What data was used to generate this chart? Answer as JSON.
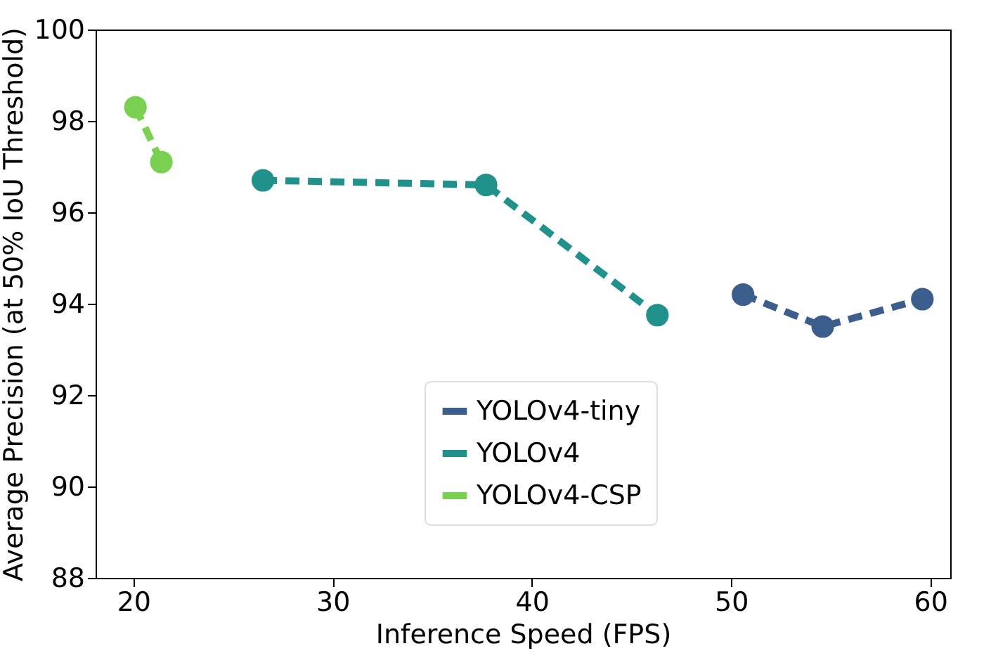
{
  "chart_data": {
    "type": "line",
    "xlabel": "Inference Speed (FPS)",
    "ylabel": "Average Precision (at 50% IoU Threshold)",
    "xlim": [
      18.1,
      61
    ],
    "xticks": [
      20,
      30,
      40,
      50,
      60
    ],
    "ylim": [
      88,
      100
    ],
    "yticks": [
      88,
      90,
      92,
      94,
      96,
      98,
      100
    ],
    "grid": false,
    "legend": "bottom",
    "marker": "circle",
    "line_style": "dashed",
    "series": [
      {
        "name": "YOLOv4-tiny",
        "color": "#3b5e8c",
        "x": [
          50.6,
          54.6,
          59.6
        ],
        "values": [
          94.2,
          93.5,
          94.1
        ]
      },
      {
        "name": "YOLOv4",
        "color": "#21918c",
        "x": [
          26.5,
          37.7,
          46.3
        ],
        "values": [
          96.7,
          96.6,
          93.75
        ]
      },
      {
        "name": "YOLOv4-CSP",
        "color": "#7ad151",
        "x": [
          20.1,
          21.4
        ],
        "values": [
          98.3,
          97.1
        ]
      }
    ]
  }
}
